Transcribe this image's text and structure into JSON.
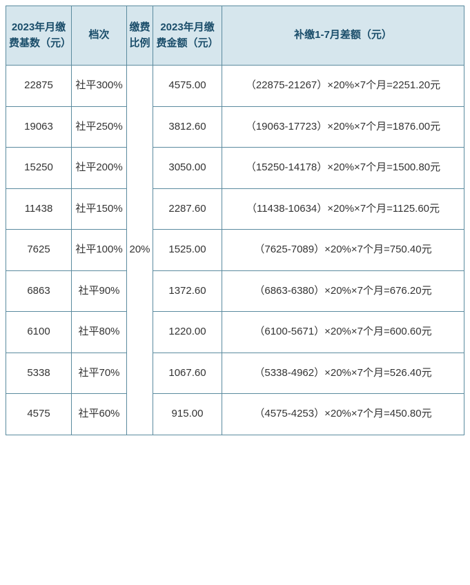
{
  "headers": {
    "base": "2023年月缴费基数（元）",
    "tier": "档次",
    "rate": "缴费比例",
    "amount": "2023年月缴费金额（元）",
    "diff": "补缴1-7月差额（元）"
  },
  "rate_value": "20%",
  "rows": [
    {
      "base": "22875",
      "tier": "社平300%",
      "amount": "4575.00",
      "diff": "（22875-21267）×20%×7个月=2251.20元"
    },
    {
      "base": "19063",
      "tier": "社平250%",
      "amount": "3812.60",
      "diff": "（19063-17723）×20%×7个月=1876.00元"
    },
    {
      "base": "15250",
      "tier": "社平200%",
      "amount": "3050.00",
      "diff": "（15250-14178）×20%×7个月=1500.80元"
    },
    {
      "base": "11438",
      "tier": "社平150%",
      "amount": "2287.60",
      "diff": "（11438-10634）×20%×7个月=1125.60元"
    },
    {
      "base": "7625",
      "tier": "社平100%",
      "amount": "1525.00",
      "diff": "（7625-7089）×20%×7个月=750.40元"
    },
    {
      "base": "6863",
      "tier": "社平90%",
      "amount": "1372.60",
      "diff": "（6863-6380）×20%×7个月=676.20元"
    },
    {
      "base": "6100",
      "tier": "社平80%",
      "amount": "1220.00",
      "diff": "（6100-5671）×20%×7个月=600.60元"
    },
    {
      "base": "5338",
      "tier": "社平70%",
      "amount": "1067.60",
      "diff": "（5338-4962）×20%×7个月=526.40元"
    },
    {
      "base": "4575",
      "tier": "社平60%",
      "amount": "915.00",
      "diff": "（4575-4253）×20%×7个月=450.80元"
    }
  ]
}
